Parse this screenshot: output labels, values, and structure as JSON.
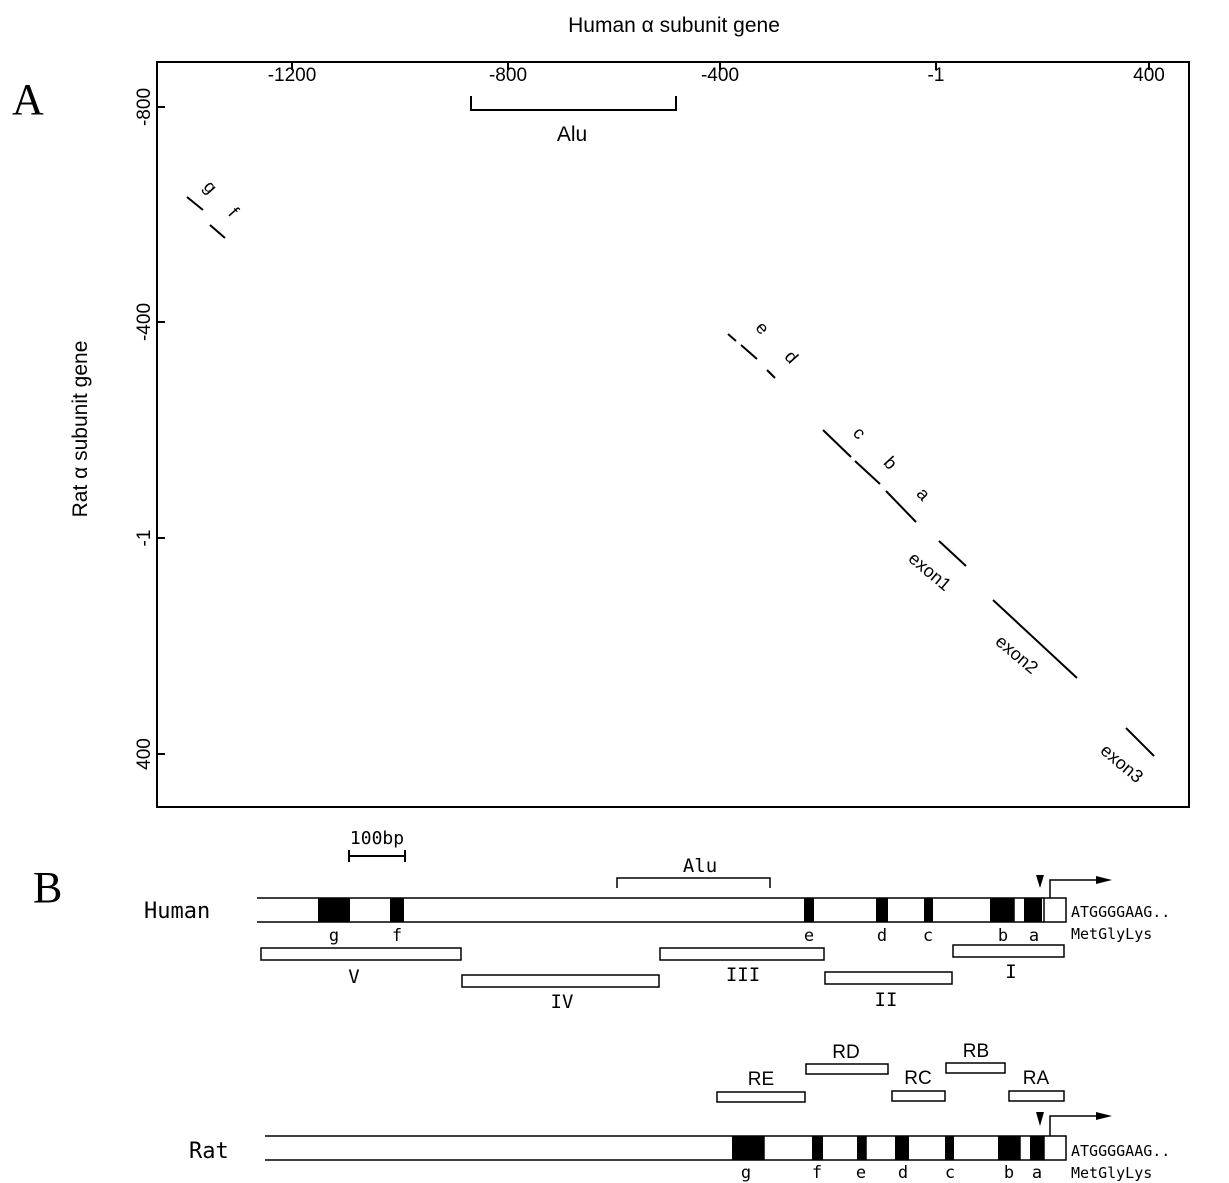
{
  "panel_a": {
    "label": "A",
    "x_axis_title": "Human α subunit gene",
    "y_axis_title": "Rat α subunit gene",
    "x_ticks": [
      "-1200",
      "-800",
      "-400",
      "-1",
      "400"
    ],
    "y_ticks": [
      "-800",
      "-400",
      "-1",
      "400"
    ],
    "alu_label": "Alu",
    "segment_labels": [
      "g",
      "f",
      "e",
      "d",
      "c",
      "b",
      "a",
      "exon1",
      "exon2",
      "exon3"
    ]
  },
  "panel_b": {
    "label": "B",
    "scale_label": "100bp",
    "human": {
      "label": "Human",
      "alu_label": "Alu",
      "element_labels": [
        "g",
        "f",
        "e",
        "d",
        "c",
        "b",
        "a"
      ],
      "sequence": "ATGGGGAAG..",
      "protein": "MetGlyLys",
      "fragments": [
        "V",
        "IV",
        "III",
        "II",
        "I"
      ]
    },
    "rat": {
      "label": "Rat",
      "element_labels": [
        "g",
        "f",
        "e",
        "d",
        "c",
        "b",
        "a"
      ],
      "sequence": "ATGGGGAAG..",
      "protein": "MetGlyLys",
      "fragments": [
        "RE",
        "RD",
        "RC",
        "RB",
        "RA"
      ]
    }
  }
}
